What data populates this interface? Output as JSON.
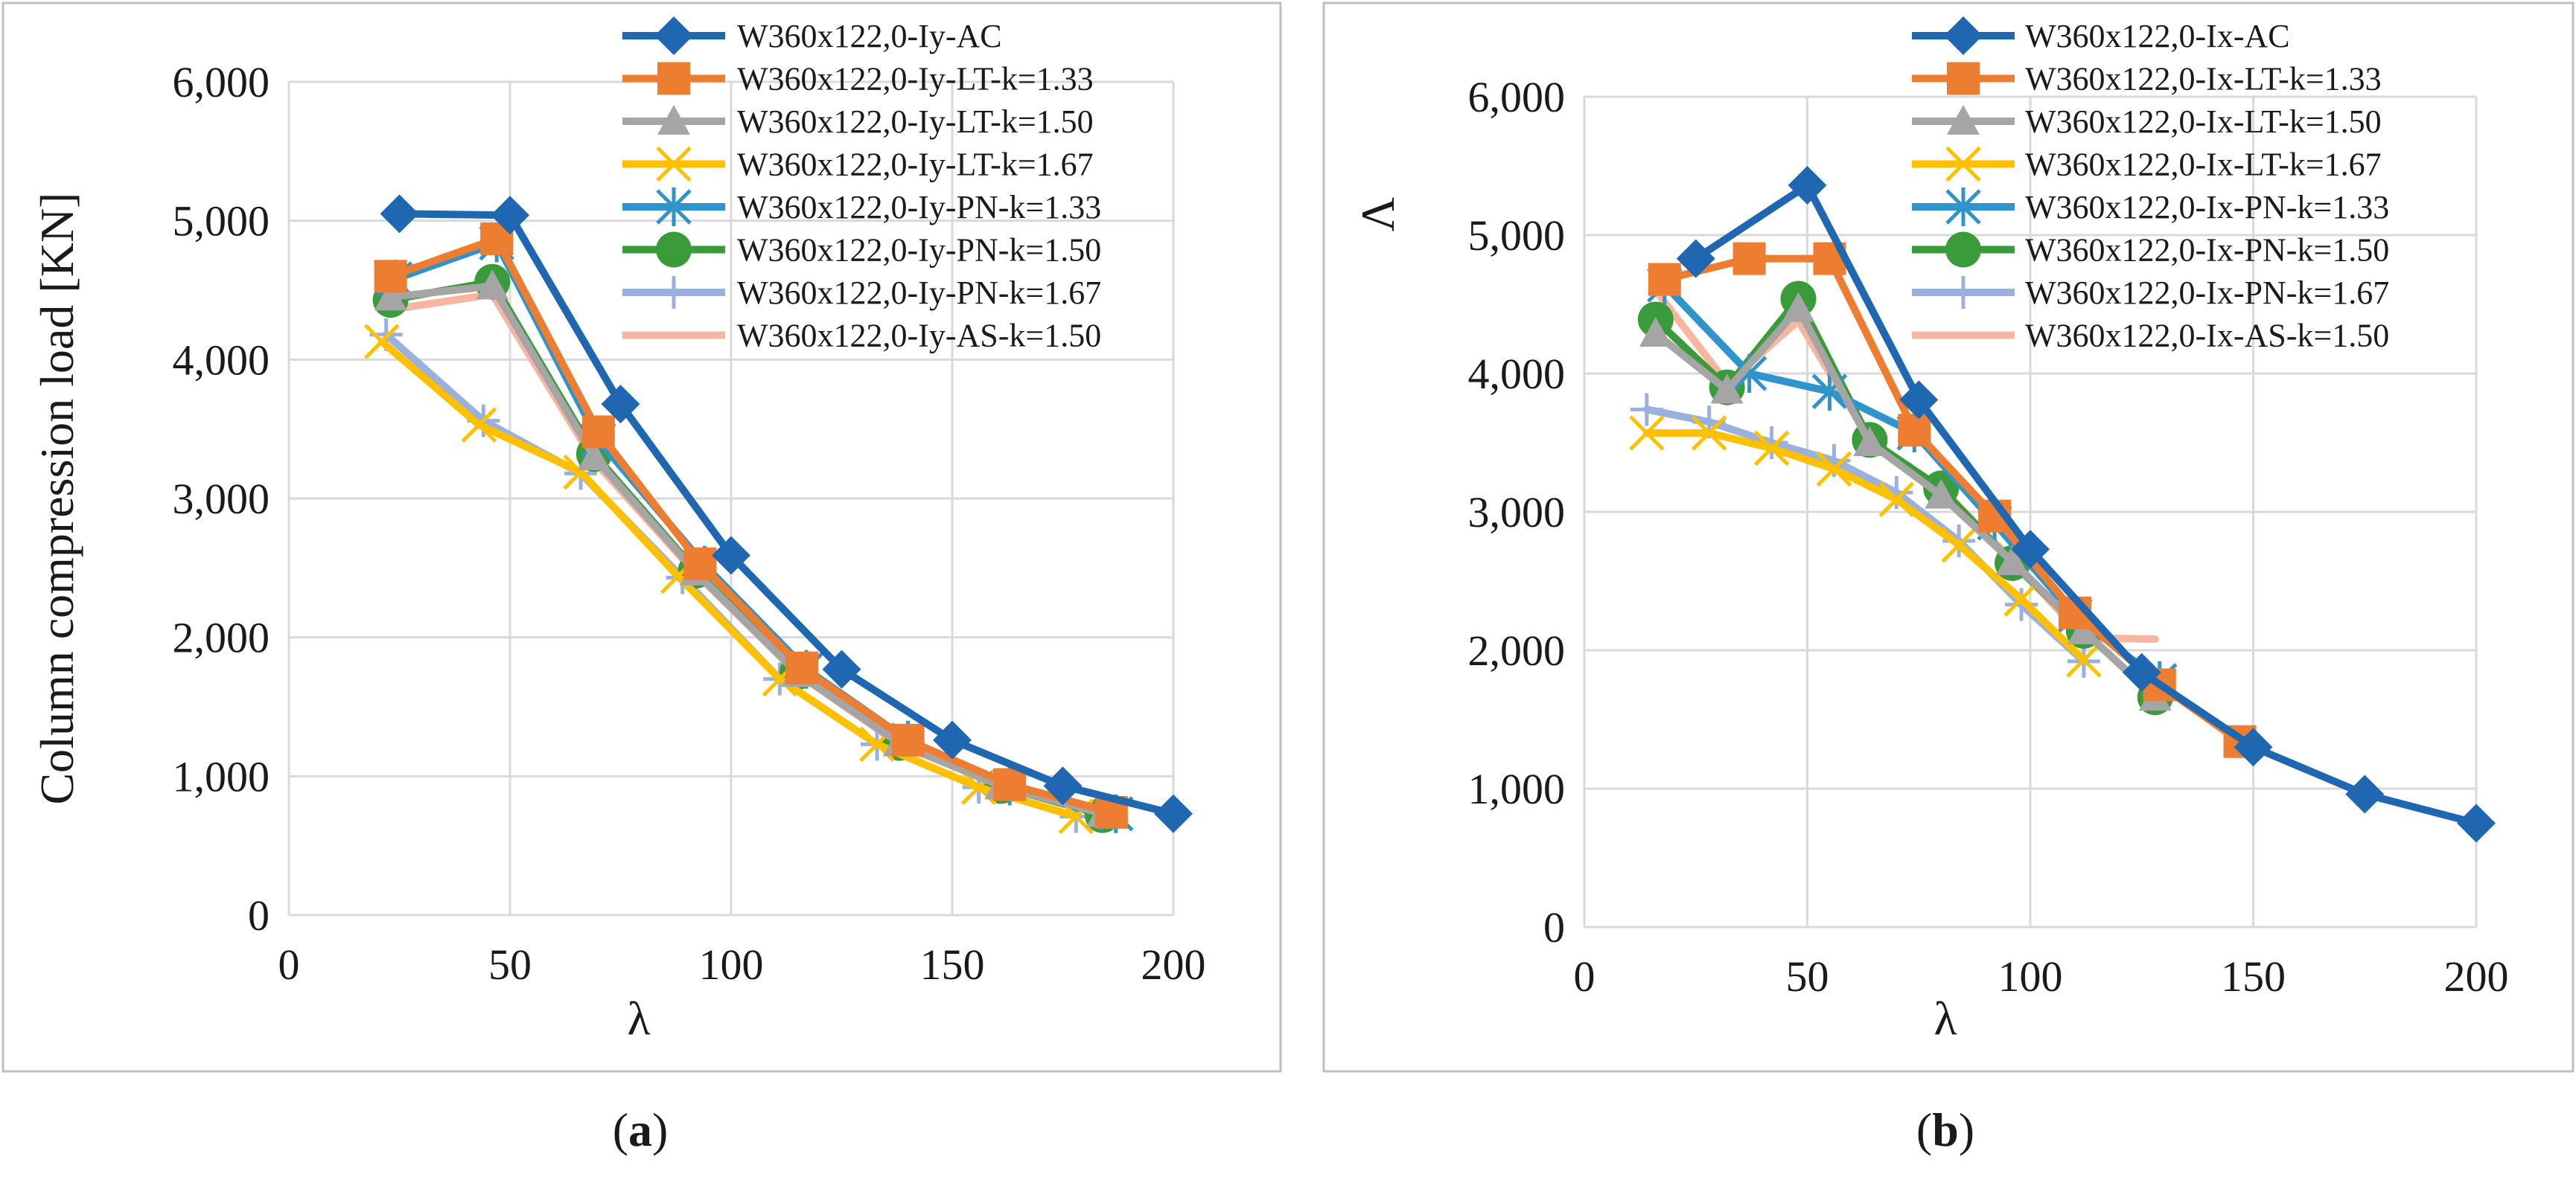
{
  "captions": [
    {
      "open": "(",
      "letter": "a",
      "close": ")"
    },
    {
      "open": "(",
      "letter": "b",
      "close": ")"
    }
  ],
  "chart_data": [
    {
      "type": "line",
      "title": "",
      "xlabel": "λ",
      "ylabel": "Column compression load [KN]",
      "xlim": [
        0,
        200
      ],
      "ylim": [
        0,
        6000
      ],
      "xticks": [
        0,
        50,
        100,
        150,
        200
      ],
      "yticks": [
        0,
        1000,
        2000,
        3000,
        4000,
        5000,
        6000
      ],
      "xtick_labels": [
        "0",
        "50",
        "100",
        "150",
        "200"
      ],
      "ytick_labels": [
        "0",
        "1,000",
        "2,000",
        "3,000",
        "4,000",
        "5,000",
        "6,000"
      ],
      "grid": true,
      "legend_position": "top-right",
      "series": [
        {
          "name": "W360x122,0-Iy-AC",
          "color": "#1f67b1",
          "marker": "diamond",
          "x": [
            25,
            50,
            75,
            100,
            125,
            150,
            175,
            200
          ],
          "y": [
            5050,
            5040,
            3680,
            2590,
            1770,
            1260,
            930,
            730
          ]
        },
        {
          "name": "W360x122,0-Iy-LT-k=1.33",
          "color": "#ed7d31",
          "marker": "square",
          "x": [
            23,
            47,
            70,
            93,
            116,
            140,
            163,
            186
          ],
          "y": [
            4600,
            4870,
            3480,
            2530,
            1780,
            1260,
            940,
            740
          ]
        },
        {
          "name": "W360x122,0-Iy-LT-k=1.50",
          "color": "#a5a5a5",
          "marker": "triangle",
          "x": [
            23,
            46,
            69,
            92,
            115,
            138,
            161,
            184
          ],
          "y": [
            4450,
            4530,
            3300,
            2470,
            1740,
            1240,
            930,
            730
          ]
        },
        {
          "name": "W360x122,0-Iy-LT-k=1.67",
          "color": "#ffc000",
          "marker": "x",
          "x": [
            21,
            43,
            66,
            88,
            111,
            133,
            156,
            178
          ],
          "y": [
            4130,
            3530,
            3190,
            2440,
            1700,
            1230,
            920,
            710
          ]
        },
        {
          "name": "W360x122,0-Iy-PN-k=1.33",
          "color": "#2e94c9",
          "marker": "asterisk",
          "x": [
            24,
            47,
            70,
            94,
            117,
            140,
            163,
            187
          ],
          "y": [
            4580,
            4840,
            3420,
            2520,
            1770,
            1260,
            930,
            730
          ]
        },
        {
          "name": "W360x122,0-Iy-PN-k=1.50",
          "color": "#3a9b3a",
          "marker": "circle",
          "x": [
            23,
            46,
            69,
            92,
            115,
            138,
            161,
            184
          ],
          "y": [
            4430,
            4560,
            3320,
            2480,
            1750,
            1240,
            930,
            720
          ]
        },
        {
          "name": "W360x122,0-Iy-PN-k=1.67",
          "color": "#9bb1dd",
          "marker": "plus",
          "x": [
            22,
            44,
            66,
            89,
            111,
            133,
            156,
            178
          ],
          "y": [
            4180,
            3560,
            3180,
            2430,
            1700,
            1230,
            920,
            710
          ]
        },
        {
          "name": "W360x122,0-Iy-AS-k=1.50",
          "color": "#f8b5a0",
          "marker": "none",
          "x": [
            23,
            46,
            69,
            92,
            115,
            138,
            161,
            184
          ],
          "y": [
            4360,
            4470,
            3270,
            2460,
            1740,
            1230,
            930,
            720
          ]
        }
      ]
    },
    {
      "type": "line",
      "title": "",
      "xlabel": "λ",
      "ylabel": "Λ",
      "xlim": [
        0,
        200
      ],
      "ylim": [
        0,
        6000
      ],
      "xticks": [
        0,
        50,
        100,
        150,
        200
      ],
      "yticks": [
        0,
        1000,
        2000,
        3000,
        4000,
        5000,
        6000
      ],
      "xtick_labels": [
        "0",
        "50",
        "100",
        "150",
        "200"
      ],
      "ytick_labels": [
        "0",
        "1,000",
        "2,000",
        "3,000",
        "4,000",
        "5,000",
        "6,000"
      ],
      "grid": true,
      "legend_position": "top-right",
      "series": [
        {
          "name": "W360x122,0-Ix-AC",
          "color": "#1f67b1",
          "marker": "diamond",
          "x": [
            25,
            50,
            75,
            100,
            125,
            150,
            175,
            200
          ],
          "y": [
            4830,
            5360,
            3810,
            2730,
            1840,
            1300,
            960,
            750
          ]
        },
        {
          "name": "W360x122,0-Ix-LT-k=1.33",
          "color": "#ed7d31",
          "marker": "square",
          "x": [
            18,
            37,
            55,
            74,
            92,
            110,
            129,
            147
          ],
          "y": [
            4680,
            4830,
            4830,
            3590,
            2970,
            2270,
            1750,
            1340
          ]
        },
        {
          "name": "W360x122,0-Ix-LT-k=1.50",
          "color": "#a5a5a5",
          "marker": "triangle",
          "x": [
            16,
            32,
            48,
            64,
            80,
            96,
            112,
            128
          ],
          "y": [
            4290,
            3880,
            4470,
            3500,
            3120,
            2640,
            2140,
            1660
          ]
        },
        {
          "name": "W360x122,0-Ix-LT-k=1.67",
          "color": "#ffc000",
          "marker": "x",
          "x": [
            14,
            28,
            42,
            56,
            70,
            84,
            98,
            112
          ],
          "y": [
            3570,
            3570,
            3460,
            3310,
            3090,
            2760,
            2370,
            1930
          ]
        },
        {
          "name": "W360x122,0-Ix-PN-k=1.33",
          "color": "#2e94c9",
          "marker": "asterisk",
          "x": [
            18,
            37,
            55,
            74,
            92,
            110,
            129
          ],
          "y": [
            4640,
            4000,
            3870,
            3570,
            2920,
            2250,
            1780
          ]
        },
        {
          "name": "W360x122,0-Ix-PN-k=1.50",
          "color": "#3a9b3a",
          "marker": "circle",
          "x": [
            16,
            32,
            48,
            64,
            80,
            96,
            112,
            128
          ],
          "y": [
            4390,
            3900,
            4540,
            3520,
            3170,
            2630,
            2140,
            1660
          ]
        },
        {
          "name": "W360x122,0-Ix-PN-k=1.67",
          "color": "#9bb1dd",
          "marker": "plus",
          "x": [
            14,
            28,
            42,
            56,
            70,
            84,
            98,
            112
          ],
          "y": [
            3740,
            3650,
            3500,
            3370,
            3140,
            2790,
            2330,
            1920
          ]
        },
        {
          "name": "W360x122,0-Ix-AS-k=1.50",
          "color": "#f8b5a0",
          "marker": "none",
          "x": [
            16,
            32,
            48,
            64,
            80,
            96,
            112,
            128
          ],
          "y": [
            4600,
            3930,
            4380,
            3520,
            3170,
            2650,
            2090,
            2080
          ]
        }
      ]
    }
  ]
}
